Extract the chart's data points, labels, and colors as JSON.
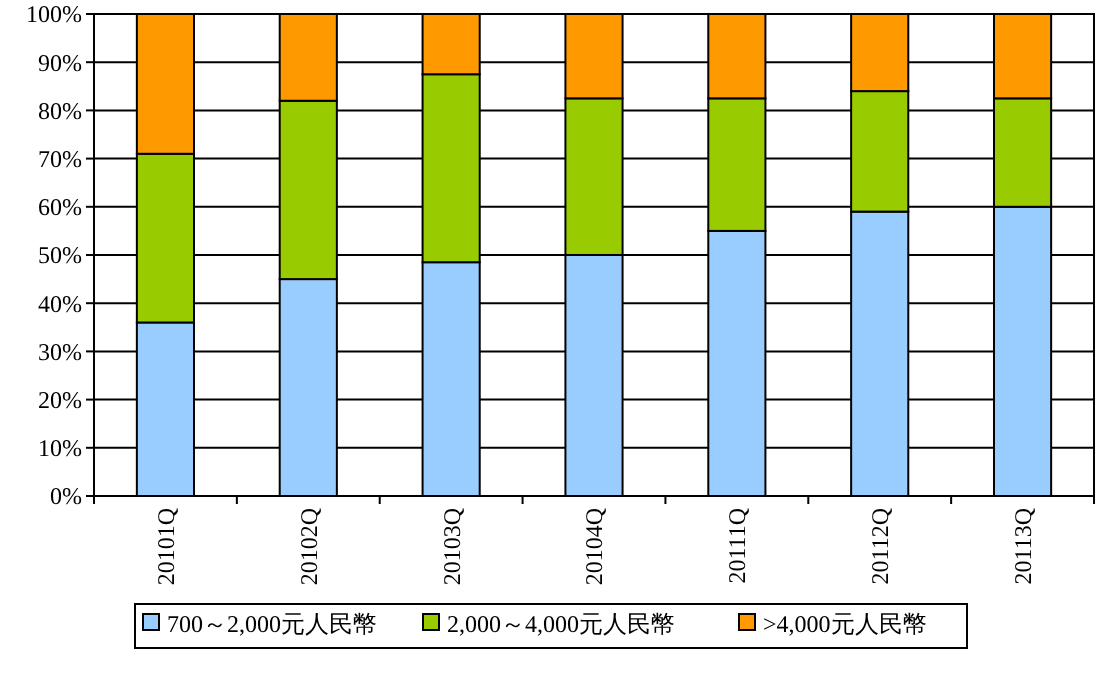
{
  "chart_data": {
    "type": "bar",
    "stacked": true,
    "categories": [
      "20101Q",
      "20102Q",
      "20103Q",
      "20104Q",
      "20111Q",
      "20112Q",
      "20113Q"
    ],
    "series": [
      {
        "name": "700～2,000元人民幣",
        "color": "#99ccff",
        "values": [
          36,
          45,
          48.5,
          50,
          55,
          59,
          60
        ]
      },
      {
        "name": "2,000～4,000元人民幣",
        "color": "#99cc00",
        "values": [
          35,
          37,
          39,
          32.5,
          27.5,
          25,
          22.5
        ]
      },
      {
        "name": ">4,000元人民幣",
        "color": "#ff9900",
        "values": [
          29,
          18,
          12.5,
          17.5,
          17.5,
          16,
          17.5
        ]
      }
    ],
    "ylim": [
      0,
      100
    ],
    "yticks": [
      {
        "value": 0,
        "label": "0%"
      },
      {
        "value": 10,
        "label": "10%"
      },
      {
        "value": 20,
        "label": "20%"
      },
      {
        "value": 30,
        "label": "30%"
      },
      {
        "value": 40,
        "label": "40%"
      },
      {
        "value": 50,
        "label": "50%"
      },
      {
        "value": 60,
        "label": "60%"
      },
      {
        "value": 70,
        "label": "70%"
      },
      {
        "value": 80,
        "label": "80%"
      },
      {
        "value": 90,
        "label": "90%"
      },
      {
        "value": 100,
        "label": "100%"
      }
    ],
    "grid": "y",
    "legend": "bottom"
  }
}
